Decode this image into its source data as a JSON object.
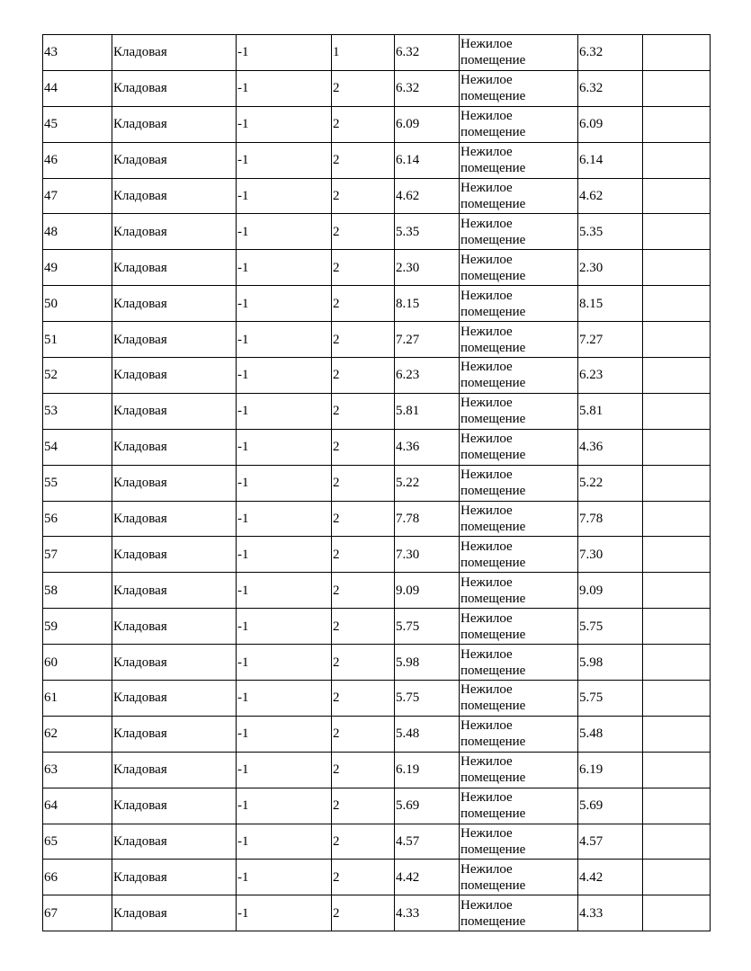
{
  "table": {
    "rows": [
      [
        "43",
        "Кладовая",
        "-1",
        "1",
        "6.32",
        "Нежилое помещение",
        "6.32"
      ],
      [
        "44",
        "Кладовая",
        "-1",
        "2",
        "6.32",
        "Нежилое помещение",
        "6.32"
      ],
      [
        "45",
        "Кладовая",
        "-1",
        "2",
        "6.09",
        "Нежилое помещение",
        "6.09"
      ],
      [
        "46",
        "Кладовая",
        "-1",
        "2",
        "6.14",
        "Нежилое помещение",
        "6.14"
      ],
      [
        "47",
        "Кладовая",
        "-1",
        "2",
        "4.62",
        "Нежилое помещение",
        "4.62"
      ],
      [
        "48",
        "Кладовая",
        "-1",
        "2",
        "5.35",
        "Нежилое помещение",
        "5.35"
      ],
      [
        "49",
        "Кладовая",
        "-1",
        "2",
        "2.30",
        "Нежилое помещение",
        "2.30"
      ],
      [
        "50",
        "Кладовая",
        "-1",
        "2",
        "8.15",
        "Нежилое помещение",
        "8.15"
      ],
      [
        "51",
        "Кладовая",
        "-1",
        "2",
        "7.27",
        "Нежилое помещение",
        "7.27"
      ],
      [
        "52",
        "Кладовая",
        "-1",
        "2",
        "6.23",
        "Нежилое помещение",
        "6.23"
      ],
      [
        "53",
        "Кладовая",
        "-1",
        "2",
        "5.81",
        "Нежилое помещение",
        "5.81"
      ],
      [
        "54",
        "Кладовая",
        "-1",
        "2",
        "4.36",
        "Нежилое помещение",
        "4.36"
      ],
      [
        "55",
        "Кладовая",
        "-1",
        "2",
        "5.22",
        "Нежилое помещение",
        "5.22"
      ],
      [
        "56",
        "Кладовая",
        "-1",
        "2",
        "7.78",
        "Нежилое помещение",
        "7.78"
      ],
      [
        "57",
        "Кладовая",
        "-1",
        "2",
        "7.30",
        "Нежилое помещение",
        "7.30"
      ],
      [
        "58",
        "Кладовая",
        "-1",
        "2",
        "9.09",
        "Нежилое помещение",
        "9.09"
      ],
      [
        "59",
        "Кладовая",
        "-1",
        "2",
        "5.75",
        "Нежилое помещение",
        "5.75"
      ],
      [
        "60",
        "Кладовая",
        "-1",
        "2",
        "5.98",
        "Нежилое помещение",
        "5.98"
      ],
      [
        "61",
        "Кладовая",
        "-1",
        "2",
        "5.75",
        "Нежилое помещение",
        "5.75"
      ],
      [
        "62",
        "Кладовая",
        "-1",
        "2",
        "5.48",
        "Нежилое помещение",
        "5.48"
      ],
      [
        "63",
        "Кладовая",
        "-1",
        "2",
        "6.19",
        "Нежилое помещение",
        "6.19"
      ],
      [
        "64",
        "Кладовая",
        "-1",
        "2",
        "5.69",
        "Нежилое помещение",
        "5.69"
      ],
      [
        "65",
        "Кладовая",
        "-1",
        "2",
        "4.57",
        "Нежилое помещение",
        "4.57"
      ],
      [
        "66",
        "Кладовая",
        "-1",
        "2",
        "4.42",
        "Нежилое помещение",
        "4.42"
      ],
      [
        "67",
        "Кладовая",
        "-1",
        "2",
        "4.33",
        "Нежилое помещение",
        "4.33"
      ]
    ]
  }
}
